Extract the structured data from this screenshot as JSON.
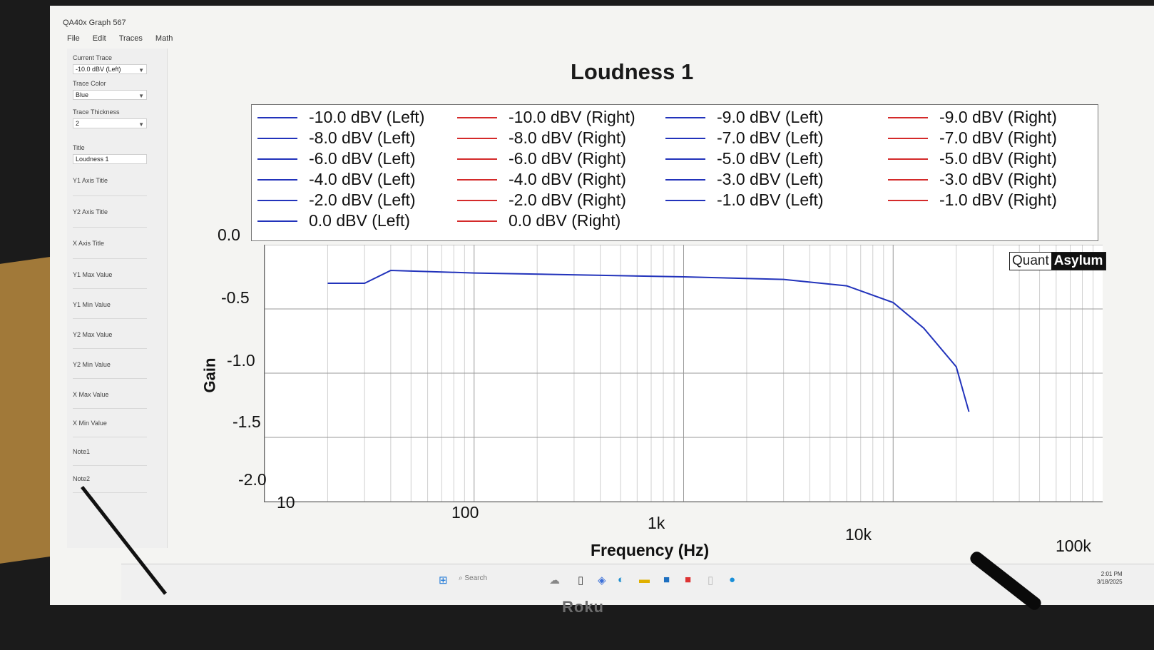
{
  "window": {
    "title": "QA40x Graph 567",
    "menu": [
      "File",
      "Edit",
      "Traces",
      "Math"
    ]
  },
  "sidebar": {
    "current_trace_label": "Current Trace",
    "current_trace_value": "-10.0 dBV (Left)",
    "trace_color_label": "Trace Color",
    "trace_color_value": "Blue",
    "trace_thickness_label": "Trace Thickness",
    "trace_thickness_value": "2",
    "title_label": "Title",
    "title_value": "Loudness 1",
    "y1_axis_title_label": "Y1 Axis Title",
    "y2_axis_title_label": "Y2 Axis Title",
    "x_axis_title_label": "X Axis Title",
    "y1_max_label": "Y1 Max Value",
    "y1_min_label": "Y1 Min Value",
    "y2_max_label": "Y2 Max Value",
    "y2_min_label": "Y2 Min Value",
    "x_max_label": "X Max Value",
    "x_min_label": "X Min Value",
    "note1_label": "Note1",
    "note2_label": "Note2"
  },
  "taskbar": {
    "search_placeholder": "Search",
    "time": "2:01 PM",
    "date": "3/18/2025"
  },
  "brand": {
    "part1": "Quant",
    "part2": "Asylum"
  },
  "bezel_label": "Roku",
  "colors": {
    "left": "#2233bb",
    "right": "#d42a2a"
  },
  "chart_data": {
    "type": "line",
    "title": "Loudness 1",
    "xlabel": "Frequency (Hz)",
    "ylabel": "Gain",
    "x_scale": "log",
    "xlim": [
      10,
      100000
    ],
    "ylim": [
      -2.0,
      0.0
    ],
    "y_ticks": [
      "0.0",
      "-0.5",
      "-1.0",
      "-1.5",
      "-2.0"
    ],
    "x_ticks": [
      "10",
      "100",
      "1k",
      "10k",
      "100k"
    ],
    "legend": [
      [
        "-10.0 dBV (Left)",
        "-10.0 dBV (Right)",
        "-9.0 dBV (Left)",
        "-9.0 dBV (Right)"
      ],
      [
        "-8.0 dBV (Left)",
        "-8.0 dBV (Right)",
        "-7.0 dBV (Left)",
        "-7.0 dBV (Right)"
      ],
      [
        "-6.0 dBV (Left)",
        "-6.0 dBV (Right)",
        "-5.0 dBV (Left)",
        "-5.0 dBV (Right)"
      ],
      [
        "-4.0 dBV (Left)",
        "-4.0 dBV (Right)",
        "-3.0 dBV (Left)",
        "-3.0 dBV (Right)"
      ],
      [
        "-2.0 dBV (Left)",
        "-2.0 dBV (Right)",
        "-1.0 dBV (Left)",
        "-1.0 dBV (Right)"
      ],
      [
        "0.0 dBV (Left)",
        "0.0 dBV (Right)"
      ]
    ],
    "series": [
      {
        "name": "-10.0 dBV (Left)",
        "x": [
          20,
          30,
          40,
          100,
          1000,
          3000,
          6000,
          10000,
          14000,
          20000,
          23000
        ],
        "y": [
          -0.3,
          -0.3,
          -0.2,
          -0.22,
          -0.25,
          -0.27,
          -0.32,
          -0.45,
          -0.65,
          -0.95,
          -1.3
        ]
      }
    ]
  }
}
